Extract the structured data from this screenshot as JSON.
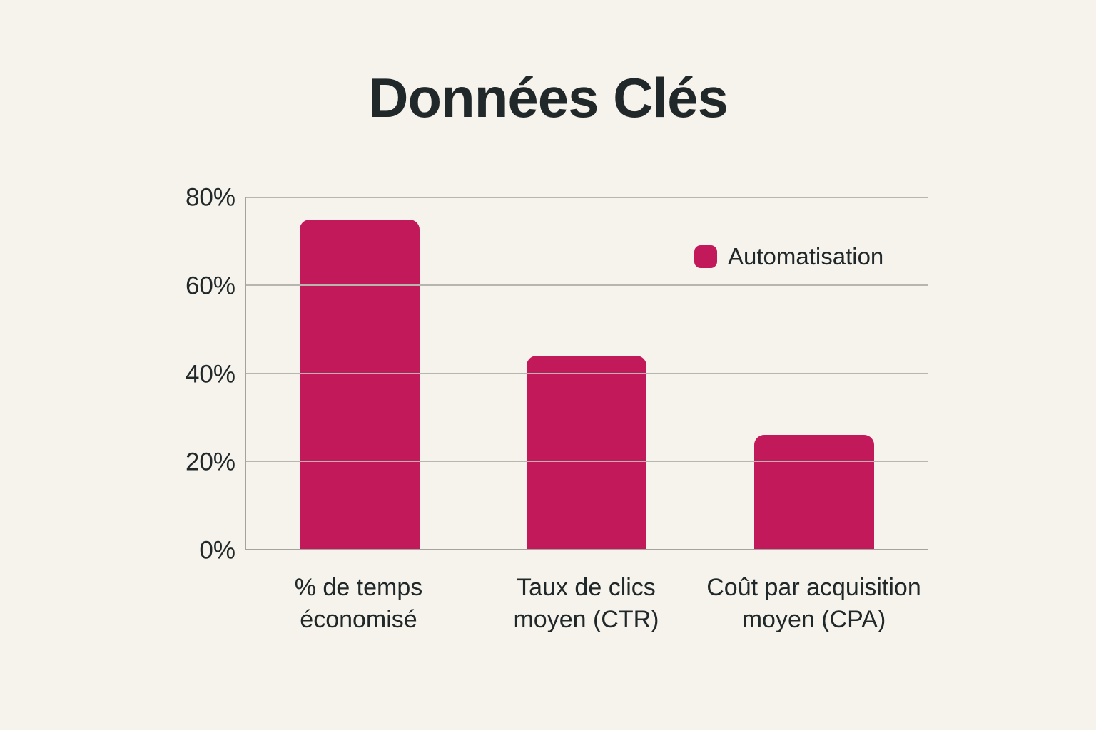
{
  "chart_data": {
    "type": "bar",
    "title": "Données Clés",
    "categories": [
      "% de temps\néconomisé",
      "Taux de clics\nmoyen (CTR)",
      "Coût par acquisition\nmoyen (CPA)"
    ],
    "series": [
      {
        "name": "Automatisation",
        "color": "#c2195b",
        "values": [
          75,
          44,
          26
        ]
      }
    ],
    "xlabel": "",
    "ylabel": "",
    "ylim": [
      0,
      80
    ],
    "yticks": [
      0,
      20,
      40,
      60,
      80
    ],
    "ytick_labels": [
      "0%",
      "20%",
      "40%",
      "60%",
      "80%"
    ],
    "grid": true,
    "legend_position": "upper-right"
  },
  "colors": {
    "background": "#f6f3ec",
    "bar": "#c2195b",
    "text": "#20282a",
    "gridline": "#b7b5b0",
    "axis": "#a5a39e"
  }
}
